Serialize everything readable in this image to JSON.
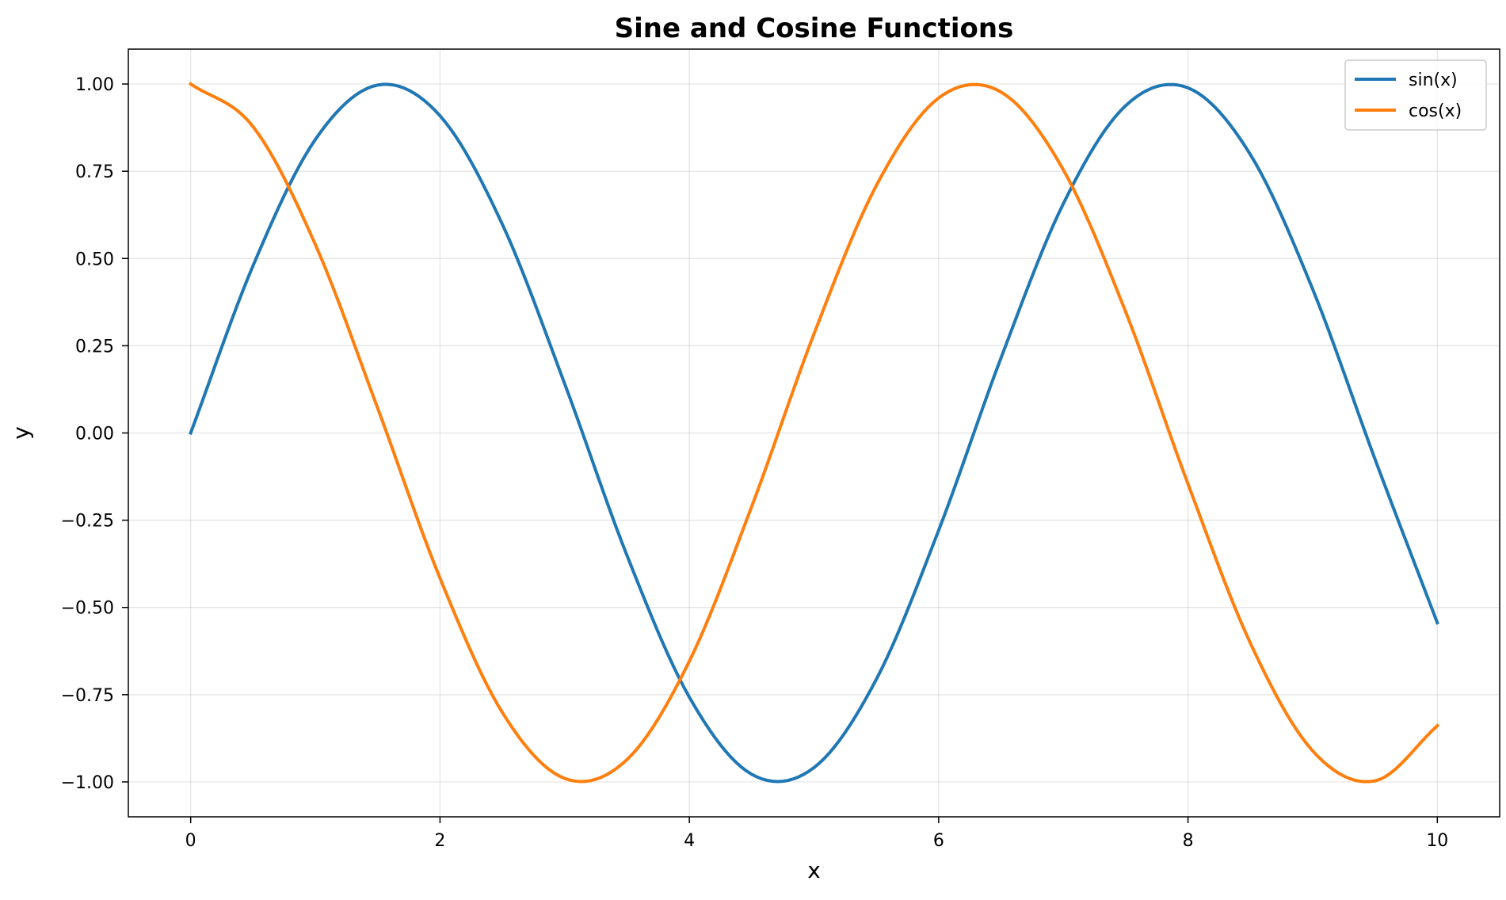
{
  "chart_data": {
    "type": "line",
    "title": "Sine and Cosine Functions",
    "xlabel": "x",
    "ylabel": "y",
    "xlim": [
      -0.5,
      10.5
    ],
    "ylim": [
      -1.1,
      1.1
    ],
    "x_ticks": [
      {
        "value": 0,
        "label": "0"
      },
      {
        "value": 2,
        "label": "2"
      },
      {
        "value": 4,
        "label": "4"
      },
      {
        "value": 6,
        "label": "6"
      },
      {
        "value": 8,
        "label": "8"
      },
      {
        "value": 10,
        "label": "10"
      }
    ],
    "y_ticks": [
      {
        "value": -1.0,
        "label": "−1.00"
      },
      {
        "value": -0.75,
        "label": "−0.75"
      },
      {
        "value": -0.5,
        "label": "−0.50"
      },
      {
        "value": -0.25,
        "label": "−0.25"
      },
      {
        "value": 0.0,
        "label": "0.00"
      },
      {
        "value": 0.25,
        "label": "0.25"
      },
      {
        "value": 0.5,
        "label": "0.50"
      },
      {
        "value": 0.75,
        "label": "0.75"
      },
      {
        "value": 1.0,
        "label": "1.00"
      }
    ],
    "grid": true,
    "legend": {
      "placement": "top-right"
    },
    "series": [
      {
        "name": "sin(x)",
        "color": "#1f77b4",
        "x": [
          0.0,
          0.5,
          1.0,
          1.5,
          2.0,
          2.5,
          3.0,
          3.5,
          4.0,
          4.5,
          5.0,
          5.5,
          6.0,
          6.5,
          7.0,
          7.5,
          8.0,
          8.5,
          9.0,
          9.5,
          10.0
        ],
        "y": [
          0.0,
          0.479,
          0.841,
          0.997,
          0.909,
          0.598,
          0.141,
          -0.351,
          -0.757,
          -0.978,
          -0.959,
          -0.706,
          -0.279,
          0.215,
          0.657,
          0.938,
          0.989,
          0.798,
          0.412,
          -0.075,
          -0.544
        ]
      },
      {
        "name": "cos(x)",
        "color": "#ff7f0e",
        "x": [
          0.0,
          0.5,
          1.0,
          1.5,
          2.0,
          2.5,
          3.0,
          3.5,
          4.0,
          4.5,
          5.0,
          5.5,
          6.0,
          6.5,
          7.0,
          7.5,
          8.0,
          8.5,
          9.0,
          9.5,
          10.0
        ],
        "y": [
          1.0,
          0.878,
          0.54,
          0.071,
          -0.416,
          -0.801,
          -0.99,
          -0.936,
          -0.654,
          -0.211,
          0.284,
          0.709,
          0.96,
          0.977,
          0.754,
          0.347,
          -0.146,
          -0.602,
          -0.911,
          -0.997,
          -0.839
        ]
      }
    ]
  }
}
